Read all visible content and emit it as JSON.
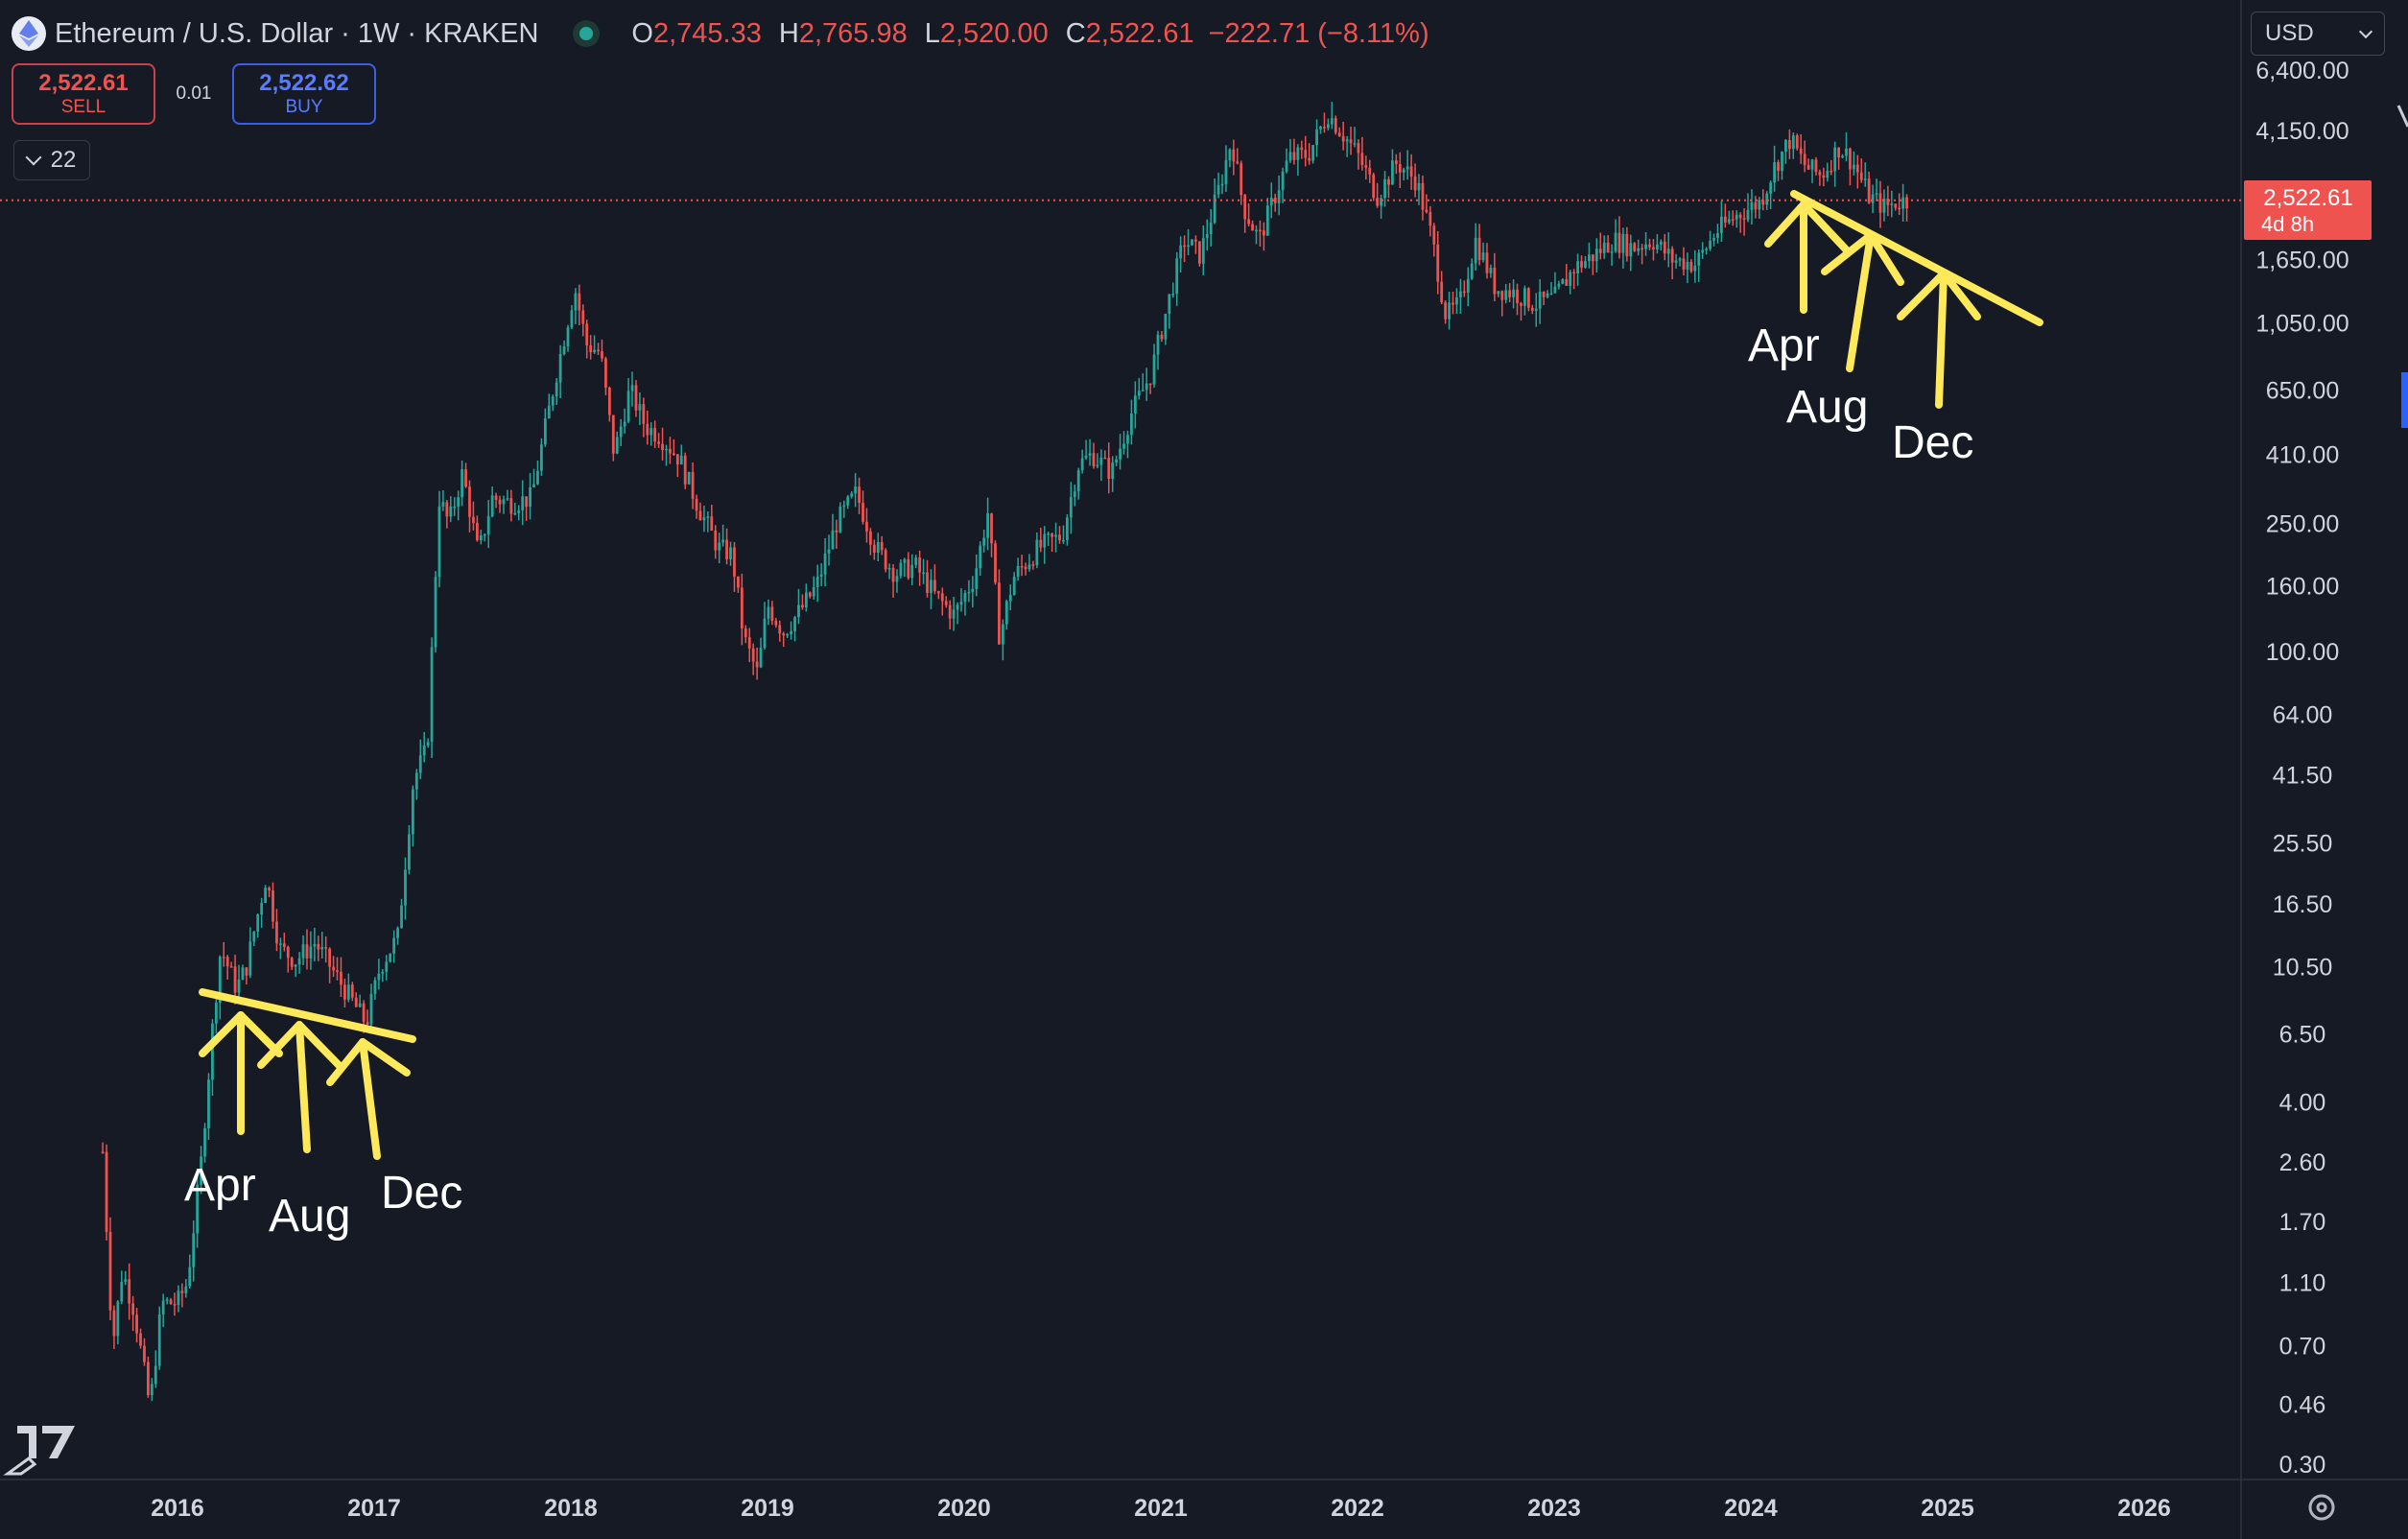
{
  "header": {
    "title": "Ethereum / U.S. Dollar · 1W · KRAKEN",
    "open_label": "O",
    "open": "2,745.33",
    "high_label": "H",
    "high": "2,765.98",
    "low_label": "L",
    "low": "2,520.00",
    "close_label": "C",
    "close": "2,522.61",
    "change": "−222.71 (−8.11%)"
  },
  "trade": {
    "sell_price": "2,522.61",
    "sell_label": "SELL",
    "spread": "0.01",
    "buy_price": "2,522.62",
    "buy_label": "BUY"
  },
  "indicators": {
    "count": "22"
  },
  "currency": {
    "selected": "USD"
  },
  "price_label": {
    "value": "2,522.61",
    "countdown": "4d 8h"
  },
  "chart_data": {
    "type": "candlestick",
    "scale": "log",
    "interval": "1W",
    "grid": false,
    "ylim": [
      0.28,
      6400
    ],
    "y_ticks": [
      "6,400.00",
      "4,150.00",
      "1,650.00",
      "1,050.00",
      "650.00",
      "410.00",
      "250.00",
      "160.00",
      "100.00",
      "64.00",
      "41.50",
      "25.50",
      "16.50",
      "10.50",
      "6.50",
      "4.00",
      "2.60",
      "1.70",
      "1.10",
      "0.70",
      "0.46",
      "0.30"
    ],
    "x_ticks": [
      "2016",
      "2017",
      "2018",
      "2019",
      "2020",
      "2021",
      "2022",
      "2023",
      "2024",
      "2025",
      "2026"
    ],
    "xlim": [
      2015.25,
      2026.45
    ],
    "last_price": 2522.61,
    "price_path": [
      [
        2015.62,
        2.8
      ],
      [
        2015.67,
        0.7
      ],
      [
        2015.72,
        1.2
      ],
      [
        2015.78,
        0.9
      ],
      [
        2015.86,
        0.45
      ],
      [
        2015.92,
        0.95
      ],
      [
        2016.0,
        0.95
      ],
      [
        2016.05,
        1.1
      ],
      [
        2016.12,
        2.6
      ],
      [
        2016.18,
        7.0
      ],
      [
        2016.22,
        12.0
      ],
      [
        2016.3,
        9.0
      ],
      [
        2016.35,
        10.5
      ],
      [
        2016.45,
        20.0
      ],
      [
        2016.52,
        12.0
      ],
      [
        2016.6,
        11.0
      ],
      [
        2016.7,
        12.5
      ],
      [
        2016.8,
        10.0
      ],
      [
        2016.9,
        8.0
      ],
      [
        2016.96,
        7.0
      ],
      [
        2017.03,
        10.5
      ],
      [
        2017.12,
        13.0
      ],
      [
        2017.2,
        40.0
      ],
      [
        2017.27,
        50.0
      ],
      [
        2017.33,
        300.0
      ],
      [
        2017.38,
        250.0
      ],
      [
        2017.45,
        360.0
      ],
      [
        2017.53,
        200.0
      ],
      [
        2017.6,
        300.0
      ],
      [
        2017.7,
        290.0
      ],
      [
        2017.8,
        300.0
      ],
      [
        2017.86,
        460.0
      ],
      [
        2017.92,
        700.0
      ],
      [
        2018.02,
        1350.0
      ],
      [
        2018.08,
        900.0
      ],
      [
        2018.15,
        850.0
      ],
      [
        2018.22,
        410.0
      ],
      [
        2018.3,
        650.0
      ],
      [
        2018.38,
        500.0
      ],
      [
        2018.45,
        470.0
      ],
      [
        2018.55,
        400.0
      ],
      [
        2018.65,
        280.0
      ],
      [
        2018.75,
        210.0
      ],
      [
        2018.82,
        200.0
      ],
      [
        2018.88,
        110.0
      ],
      [
        2018.95,
        85.0
      ],
      [
        2019.0,
        140.0
      ],
      [
        2019.08,
        115.0
      ],
      [
        2019.17,
        135.0
      ],
      [
        2019.25,
        160.0
      ],
      [
        2019.35,
        250.0
      ],
      [
        2019.45,
        310.0
      ],
      [
        2019.55,
        210.0
      ],
      [
        2019.65,
        175.0
      ],
      [
        2019.75,
        185.0
      ],
      [
        2019.85,
        150.0
      ],
      [
        2019.95,
        130.0
      ],
      [
        2020.05,
        170.0
      ],
      [
        2020.12,
        270.0
      ],
      [
        2020.18,
        110.0
      ],
      [
        2020.25,
        170.0
      ],
      [
        2020.38,
        210.0
      ],
      [
        2020.5,
        230.0
      ],
      [
        2020.58,
        380.0
      ],
      [
        2020.65,
        410.0
      ],
      [
        2020.75,
        360.0
      ],
      [
        2020.85,
        550.0
      ],
      [
        2020.95,
        730.0
      ],
      [
        2021.05,
        1300.0
      ],
      [
        2021.12,
        1900.0
      ],
      [
        2021.2,
        1700.0
      ],
      [
        2021.3,
        2800.0
      ],
      [
        2021.36,
        3900.0
      ],
      [
        2021.42,
        2400.0
      ],
      [
        2021.5,
        1900.0
      ],
      [
        2021.58,
        2600.0
      ],
      [
        2021.65,
        3400.0
      ],
      [
        2021.75,
        3500.0
      ],
      [
        2021.85,
        4700.0
      ],
      [
        2021.92,
        4100.0
      ],
      [
        2022.0,
        3500.0
      ],
      [
        2022.1,
        2600.0
      ],
      [
        2022.2,
        3300.0
      ],
      [
        2022.3,
        2900.0
      ],
      [
        2022.38,
        1900.0
      ],
      [
        2022.45,
        1100.0
      ],
      [
        2022.52,
        1200.0
      ],
      [
        2022.6,
        1900.0
      ],
      [
        2022.7,
        1350.0
      ],
      [
        2022.8,
        1300.0
      ],
      [
        2022.9,
        1200.0
      ],
      [
        2023.0,
        1250.0
      ],
      [
        2023.1,
        1550.0
      ],
      [
        2023.2,
        1700.0
      ],
      [
        2023.3,
        1900.0
      ],
      [
        2023.4,
        1800.0
      ],
      [
        2023.5,
        1900.0
      ],
      [
        2023.6,
        1650.0
      ],
      [
        2023.72,
        1600.0
      ],
      [
        2023.82,
        2000.0
      ],
      [
        2023.92,
        2250.0
      ],
      [
        2024.05,
        2500.0
      ],
      [
        2024.12,
        3200.0
      ],
      [
        2024.2,
        3900.0
      ],
      [
        2024.28,
        3200.0
      ],
      [
        2024.36,
        3000.0
      ],
      [
        2024.45,
        3700.0
      ],
      [
        2024.52,
        3300.0
      ],
      [
        2024.6,
        2600.0
      ],
      [
        2024.68,
        2400.0
      ],
      [
        2024.75,
        2500.0
      ],
      [
        2024.8,
        2522.61
      ]
    ]
  },
  "annotations": {
    "labels_2016": [
      "Apr",
      "Aug",
      "Dec"
    ],
    "labels_2024": [
      "Apr",
      "Aug",
      "Dec"
    ]
  }
}
